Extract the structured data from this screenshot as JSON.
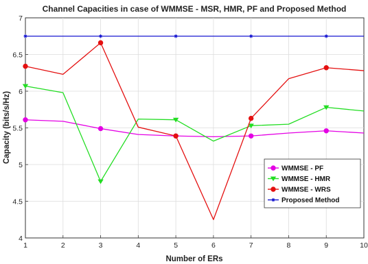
{
  "chart_data": {
    "type": "line",
    "title": "Channel Capacities in case of WMMSE - MSR, HMR, PF and Proposed Method",
    "xlabel": "Number of ERs",
    "ylabel": "Capacity (bits/s/Hz)",
    "x": [
      1,
      2,
      3,
      4,
      5,
      6,
      7,
      8,
      9,
      10
    ],
    "xlim": [
      1,
      10
    ],
    "ylim": [
      4,
      7
    ],
    "xticks": [
      "1",
      "2",
      "3",
      "4",
      "5",
      "6",
      "7",
      "8",
      "9",
      "10"
    ],
    "yticks": [
      "4",
      "4.5",
      "5",
      "5.5",
      "6",
      "6.5",
      "7"
    ],
    "grid": true,
    "legend_position": "lower-right",
    "series": [
      {
        "name": "WMMSE - PF",
        "color": "#e400e4",
        "marker": "circle",
        "marker_at": [
          1,
          3,
          5,
          7,
          9
        ],
        "values": [
          5.61,
          5.59,
          5.49,
          5.41,
          5.39,
          5.38,
          5.39,
          5.43,
          5.46,
          5.43
        ]
      },
      {
        "name": "WMMSE - HMR",
        "color": "#22dd22",
        "marker": "triangle-down",
        "marker_at": [
          1,
          3,
          5,
          7,
          9
        ],
        "values": [
          6.07,
          5.98,
          4.77,
          5.62,
          5.61,
          5.32,
          5.53,
          5.55,
          5.78,
          5.73
        ]
      },
      {
        "name": "WMMSE - WRS",
        "color": "#e41010",
        "marker": "circle",
        "marker_at": [
          1,
          3,
          5,
          7,
          9
        ],
        "values": [
          6.34,
          6.23,
          6.66,
          5.51,
          5.39,
          4.25,
          5.63,
          6.17,
          6.32,
          6.28
        ]
      },
      {
        "name": "Proposed Method",
        "color": "#1414d0",
        "marker": "asterisk",
        "marker_at": [
          1,
          3,
          5,
          7,
          9
        ],
        "values": [
          6.75,
          6.75,
          6.75,
          6.75,
          6.75,
          6.75,
          6.75,
          6.75,
          6.75,
          6.75
        ]
      }
    ]
  }
}
